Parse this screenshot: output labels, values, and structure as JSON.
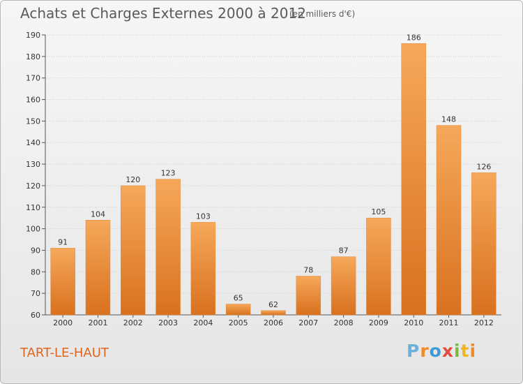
{
  "header": {
    "title": "Achats et Charges Externes 2000 à 2012",
    "unit": "(en milliers d'€)"
  },
  "footer": {
    "place": "TART-LE-HAUT",
    "brand": [
      "P",
      "r",
      "o",
      "x",
      "i",
      "t",
      "i"
    ]
  },
  "colors": {
    "bar_light": "#f6a85a",
    "bar_dark": "#d8711f",
    "title_text": "#5a5a5a",
    "place_text": "#e0651f"
  },
  "chart_data": {
    "type": "bar",
    "title": "Achats et Charges Externes 2000 à 2012",
    "categories": [
      "2000",
      "2001",
      "2002",
      "2003",
      "2004",
      "2005",
      "2006",
      "2007",
      "2008",
      "2009",
      "2010",
      "2011",
      "2012"
    ],
    "values": [
      91,
      104,
      120,
      123,
      103,
      65,
      62,
      78,
      87,
      105,
      186,
      148,
      126
    ],
    "ylim": [
      60,
      190
    ],
    "yticks": [
      60,
      70,
      80,
      90,
      100,
      110,
      120,
      130,
      140,
      150,
      160,
      170,
      180,
      190
    ],
    "grid": true,
    "xlabel": "",
    "ylabel": ""
  }
}
